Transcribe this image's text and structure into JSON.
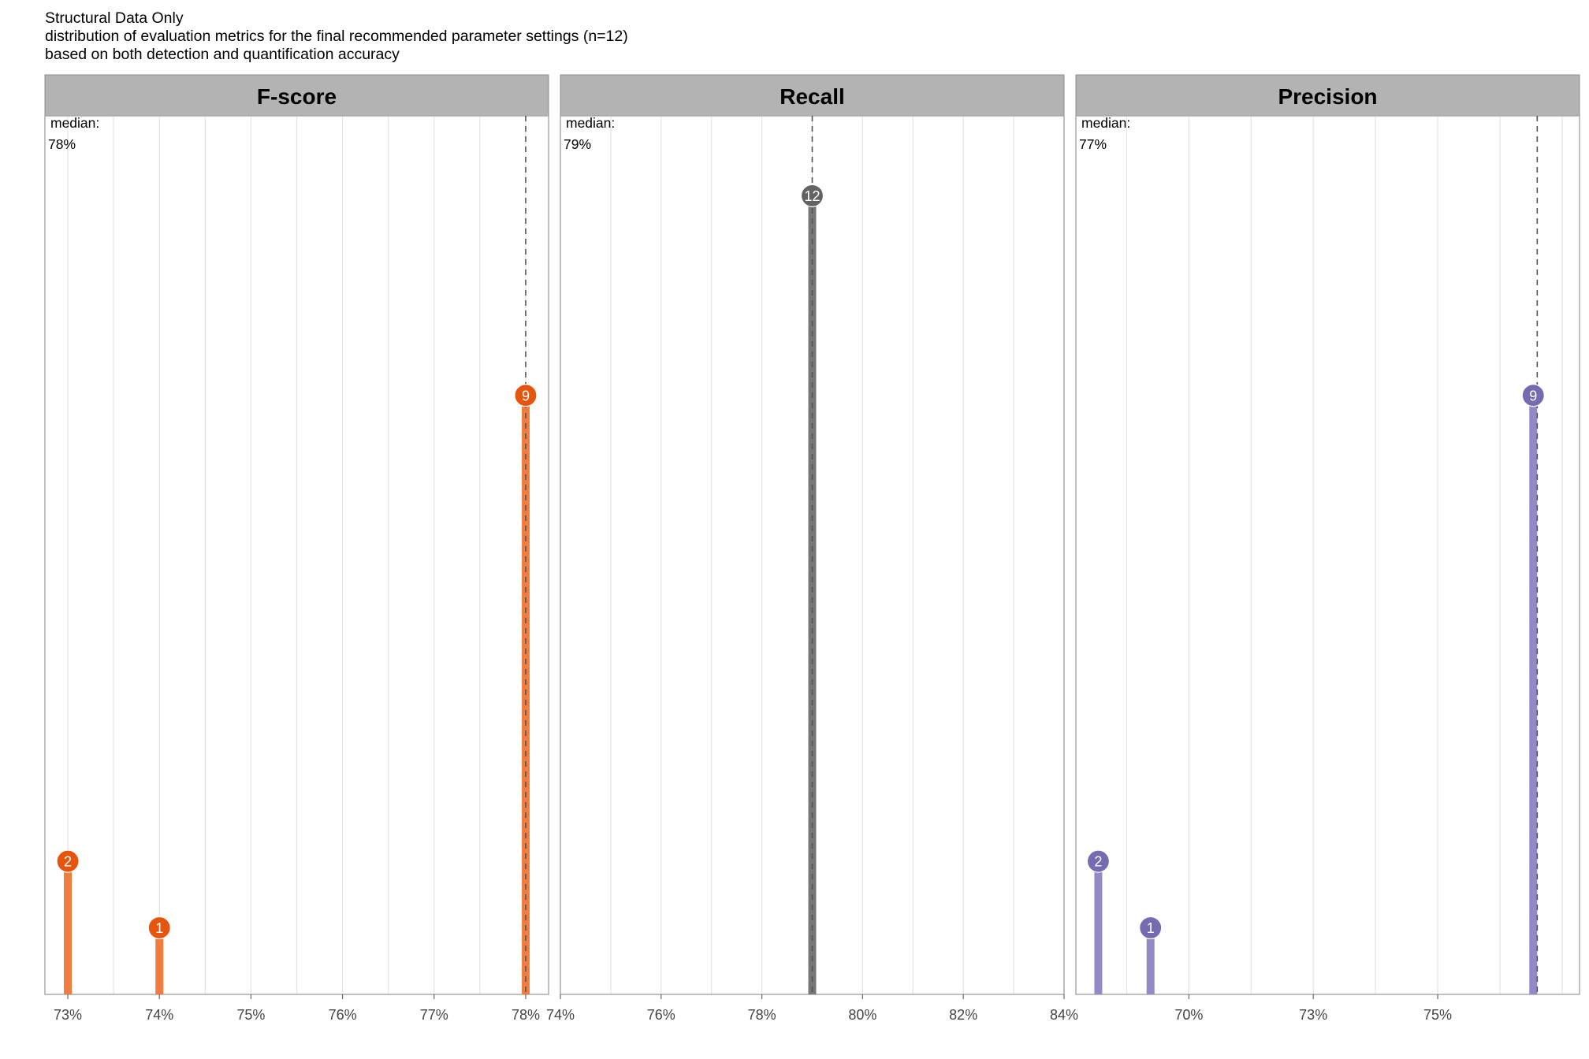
{
  "header": {
    "title": "Structural Data Only",
    "subtitle_1": "distribution of evaluation metrics for the final recommended parameter settings (n=12)",
    "subtitle_2": "based on both detection and quantification accuracy"
  },
  "chart_data": [
    {
      "type": "lollipop",
      "panel": "F-score",
      "color": "#e6550d",
      "stem_color": "#f07c3f",
      "median_label": "median:",
      "median_value_label": "78%",
      "median": 0.78,
      "xlim": [
        0.7275,
        0.7825
      ],
      "ticks": [
        0.73,
        0.74,
        0.75,
        0.76,
        0.77,
        0.78
      ],
      "tick_labels": [
        "73%",
        "74%",
        "75%",
        "76%",
        "77%",
        "78%"
      ],
      "ylim": [
        0,
        13.2
      ],
      "points": [
        {
          "x": 0.73,
          "count": 2
        },
        {
          "x": 0.74,
          "count": 1
        },
        {
          "x": 0.78,
          "count": 9
        }
      ]
    },
    {
      "type": "lollipop",
      "panel": "Recall",
      "color": "#636363",
      "stem_color": "#777777",
      "median_label": "median:",
      "median_value_label": "79%",
      "median": 0.79,
      "xlim": [
        0.74,
        0.84
      ],
      "ticks": [
        0.74,
        0.76,
        0.78,
        0.8,
        0.82,
        0.84
      ],
      "tick_labels": [
        "74%",
        "76%",
        "78%",
        "80%",
        "82%",
        "84%"
      ],
      "ylim": [
        0,
        13.2
      ],
      "points": [
        {
          "x": 0.79,
          "count": 12
        }
      ]
    },
    {
      "type": "lollipop",
      "panel": "Precision",
      "color": "#756bb1",
      "stem_color": "#9489c6",
      "median_label": "median:",
      "median_value_label": "77%",
      "median": 0.77,
      "xlim": [
        0.6773,
        0.7785
      ],
      "ticks": [
        0.7,
        0.725,
        0.75
      ],
      "tick_labels": [
        "70%",
        "73%",
        "75%"
      ],
      "ylim": [
        0,
        13.2
      ],
      "points": [
        {
          "x": 0.6818,
          "count": 2
        },
        {
          "x": 0.6923,
          "count": 1
        },
        {
          "x": 0.7692,
          "count": 9
        }
      ]
    }
  ]
}
